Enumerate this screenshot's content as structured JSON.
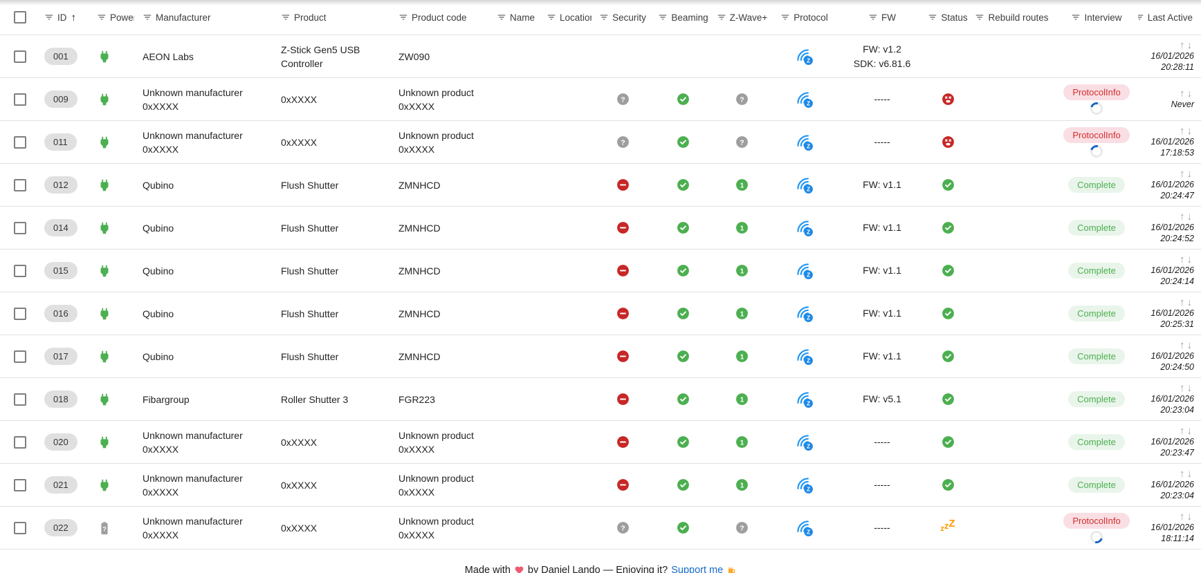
{
  "colors": {
    "green": "#4CAF50",
    "red": "#C62828",
    "blue": "#2196F3",
    "blue_badge": "#1E88E5",
    "gray": "#9E9E9E",
    "orange": "#FF9800",
    "link_blue": "#1669C9",
    "id_chip_bg": "#E0E0E0",
    "complete_chip_bg": "#E9F5EA",
    "complete_chip_text": "#4CAF50",
    "protocolinfo_chip_bg": "#F9DEE3",
    "protocolinfo_chip_text": "#D32F2F",
    "row_border": "#E0E0E0"
  },
  "header": {
    "select_all_checked": false,
    "columns": [
      {
        "key": "id",
        "label": "ID",
        "filter_icon": "filter-icon",
        "sort": "asc"
      },
      {
        "key": "power",
        "label": "Power",
        "filter_icon": "filter-icon",
        "sort": null
      },
      {
        "key": "manufacturer",
        "label": "Manufacturer",
        "filter_icon": "filter-icon",
        "sort": null
      },
      {
        "key": "product",
        "label": "Product",
        "filter_icon": "filter-icon",
        "sort": null
      },
      {
        "key": "code",
        "label": "Product code",
        "filter_icon": "filter-icon",
        "sort": null
      },
      {
        "key": "name",
        "label": "Name",
        "filter_icon": "filter-icon",
        "sort": null
      },
      {
        "key": "location",
        "label": "Location",
        "filter_icon": "filter-icon",
        "sort": null
      },
      {
        "key": "security",
        "label": "Security",
        "filter_icon": "filter-icon",
        "sort": null
      },
      {
        "key": "beaming",
        "label": "Beaming",
        "filter_icon": "filter-icon",
        "sort": null
      },
      {
        "key": "zwave",
        "label": "Z-Wave+",
        "filter_icon": "filter-icon",
        "sort": null
      },
      {
        "key": "protocol",
        "label": "Protocol",
        "filter_icon": "filter-icon",
        "sort": null
      },
      {
        "key": "fw",
        "label": "FW",
        "filter_icon": "filter-icon",
        "sort": null
      },
      {
        "key": "status",
        "label": "Status",
        "filter_icon": "filter-icon",
        "sort": null
      },
      {
        "key": "rebuild",
        "label": "Rebuild routes",
        "filter_icon": "filter-icon",
        "sort": null
      },
      {
        "key": "interview",
        "label": "Interview",
        "filter_icon": "filter-icon",
        "sort": null
      },
      {
        "key": "last",
        "label": "Last Active",
        "filter_icon": "filter-icon",
        "sort": null
      }
    ]
  },
  "rows": [
    {
      "id": "001",
      "checked": false,
      "power_icon": "power-plug-icon",
      "manufacturer": "AEON Labs",
      "product": "Z-Stick Gen5 USB Controller",
      "product_code": "ZW090",
      "name": "",
      "location": "",
      "security_icon": null,
      "beaming_icon": null,
      "zwaveplus_icon": null,
      "protocol_icon": "zwave-signal-icon",
      "fw_lines": [
        "FW: v1.2",
        "SDK: v6.81.6"
      ],
      "status_icon": null,
      "rebuild_routes": "",
      "interview": null,
      "last_active": {
        "date": "16/01/2026",
        "time": "20:28:11"
      }
    },
    {
      "id": "009",
      "checked": false,
      "power_icon": "power-plug-icon",
      "manufacturer": "Unknown manufacturer 0xXXXX",
      "product": "0xXXXX",
      "product_code": "Unknown product 0xXXXX",
      "name": "",
      "location": "",
      "security_icon": "help-circle-icon",
      "beaming_icon": "check-circle-icon",
      "zwaveplus_icon": "help-circle-icon",
      "protocol_icon": "zwave-signal-icon",
      "fw_lines": [
        "-----"
      ],
      "status_icon": "dead-face-icon",
      "rebuild_routes": "",
      "interview": {
        "label": "ProtocolInfo",
        "style": "error",
        "spinner": true,
        "spinner_angle_deg": -30
      },
      "last_active": {
        "never": "Never"
      }
    },
    {
      "id": "011",
      "checked": false,
      "power_icon": "power-plug-icon",
      "manufacturer": "Unknown manufacturer 0xXXXX",
      "product": "0xXXXX",
      "product_code": "Unknown product 0xXXXX",
      "name": "",
      "location": "",
      "security_icon": "help-circle-icon",
      "beaming_icon": "check-circle-icon",
      "zwaveplus_icon": "help-circle-icon",
      "protocol_icon": "zwave-signal-icon",
      "fw_lines": [
        "-----"
      ],
      "status_icon": "dead-face-icon",
      "rebuild_routes": "",
      "interview": {
        "label": "ProtocolInfo",
        "style": "error",
        "spinner": true,
        "spinner_angle_deg": -30
      },
      "last_active": {
        "date": "16/01/2026",
        "time": "17:18:53"
      }
    },
    {
      "id": "012",
      "checked": false,
      "power_icon": "power-plug-icon",
      "manufacturer": "Qubino",
      "product": "Flush Shutter",
      "product_code": "ZMNHCD",
      "name": "",
      "location": "",
      "security_icon": "minus-circle-icon",
      "beaming_icon": "check-circle-icon",
      "zwaveplus_icon": "one-circle-icon",
      "protocol_icon": "zwave-signal-icon",
      "fw_lines": [
        "FW: v1.1"
      ],
      "status_icon": "check-circle-icon",
      "rebuild_routes": "",
      "interview": {
        "label": "Complete",
        "style": "complete",
        "spinner": false
      },
      "last_active": {
        "date": "16/01/2026",
        "time": "20:24:47"
      }
    },
    {
      "id": "014",
      "checked": false,
      "power_icon": "power-plug-icon",
      "manufacturer": "Qubino",
      "product": "Flush Shutter",
      "product_code": "ZMNHCD",
      "name": "",
      "location": "",
      "security_icon": "minus-circle-icon",
      "beaming_icon": "check-circle-icon",
      "zwaveplus_icon": "one-circle-icon",
      "protocol_icon": "zwave-signal-icon",
      "fw_lines": [
        "FW: v1.1"
      ],
      "status_icon": "check-circle-icon",
      "rebuild_routes": "",
      "interview": {
        "label": "Complete",
        "style": "complete",
        "spinner": false
      },
      "last_active": {
        "date": "16/01/2026",
        "time": "20:24:52"
      }
    },
    {
      "id": "015",
      "checked": false,
      "power_icon": "power-plug-icon",
      "manufacturer": "Qubino",
      "product": "Flush Shutter",
      "product_code": "ZMNHCD",
      "name": "",
      "location": "",
      "security_icon": "minus-circle-icon",
      "beaming_icon": "check-circle-icon",
      "zwaveplus_icon": "one-circle-icon",
      "protocol_icon": "zwave-signal-icon",
      "fw_lines": [
        "FW: v1.1"
      ],
      "status_icon": "check-circle-icon",
      "rebuild_routes": "",
      "interview": {
        "label": "Complete",
        "style": "complete",
        "spinner": false
      },
      "last_active": {
        "date": "16/01/2026",
        "time": "20:24:14"
      }
    },
    {
      "id": "016",
      "checked": false,
      "power_icon": "power-plug-icon",
      "manufacturer": "Qubino",
      "product": "Flush Shutter",
      "product_code": "ZMNHCD",
      "name": "",
      "location": "",
      "security_icon": "minus-circle-icon",
      "beaming_icon": "check-circle-icon",
      "zwaveplus_icon": "one-circle-icon",
      "protocol_icon": "zwave-signal-icon",
      "fw_lines": [
        "FW: v1.1"
      ],
      "status_icon": "check-circle-icon",
      "rebuild_routes": "",
      "interview": {
        "label": "Complete",
        "style": "complete",
        "spinner": false
      },
      "last_active": {
        "date": "16/01/2026",
        "time": "20:25:31"
      }
    },
    {
      "id": "017",
      "checked": false,
      "power_icon": "power-plug-icon",
      "manufacturer": "Qubino",
      "product": "Flush Shutter",
      "product_code": "ZMNHCD",
      "name": "",
      "location": "",
      "security_icon": "minus-circle-icon",
      "beaming_icon": "check-circle-icon",
      "zwaveplus_icon": "one-circle-icon",
      "protocol_icon": "zwave-signal-icon",
      "fw_lines": [
        "FW: v1.1"
      ],
      "status_icon": "check-circle-icon",
      "rebuild_routes": "",
      "interview": {
        "label": "Complete",
        "style": "complete",
        "spinner": false
      },
      "last_active": {
        "date": "16/01/2026",
        "time": "20:24:50"
      }
    },
    {
      "id": "018",
      "checked": false,
      "power_icon": "power-plug-icon",
      "manufacturer": "Fibargroup",
      "product": "Roller Shutter 3",
      "product_code": "FGR223",
      "name": "",
      "location": "",
      "security_icon": "minus-circle-icon",
      "beaming_icon": "check-circle-icon",
      "zwaveplus_icon": "one-circle-icon",
      "protocol_icon": "zwave-signal-icon",
      "fw_lines": [
        "FW: v5.1"
      ],
      "status_icon": "check-circle-icon",
      "rebuild_routes": "",
      "interview": {
        "label": "Complete",
        "style": "complete",
        "spinner": false
      },
      "last_active": {
        "date": "16/01/2026",
        "time": "20:23:04"
      }
    },
    {
      "id": "020",
      "checked": false,
      "power_icon": "power-plug-icon",
      "manufacturer": "Unknown manufacturer 0xXXXX",
      "product": "0xXXXX",
      "product_code": "Unknown product 0xXXXX",
      "name": "",
      "location": "",
      "security_icon": "minus-circle-icon",
      "beaming_icon": "check-circle-icon",
      "zwaveplus_icon": "one-circle-icon",
      "protocol_icon": "zwave-signal-icon",
      "fw_lines": [
        "-----"
      ],
      "status_icon": "check-circle-icon",
      "rebuild_routes": "",
      "interview": {
        "label": "Complete",
        "style": "complete",
        "spinner": false
      },
      "last_active": {
        "date": "16/01/2026",
        "time": "20:23:47"
      }
    },
    {
      "id": "021",
      "checked": false,
      "power_icon": "power-plug-icon",
      "manufacturer": "Unknown manufacturer 0xXXXX",
      "product": "0xXXXX",
      "product_code": "Unknown product 0xXXXX",
      "name": "",
      "location": "",
      "security_icon": "minus-circle-icon",
      "beaming_icon": "check-circle-icon",
      "zwaveplus_icon": "one-circle-icon",
      "protocol_icon": "zwave-signal-icon",
      "fw_lines": [
        "-----"
      ],
      "status_icon": "check-circle-icon",
      "rebuild_routes": "",
      "interview": {
        "label": "Complete",
        "style": "complete",
        "spinner": false
      },
      "last_active": {
        "date": "16/01/2026",
        "time": "20:23:04"
      }
    },
    {
      "id": "022",
      "checked": false,
      "power_icon": "battery-unknown-icon",
      "manufacturer": "Unknown manufacturer 0xXXXX",
      "product": "0xXXXX",
      "product_code": "Unknown product 0xXXXX",
      "name": "",
      "location": "",
      "security_icon": "help-circle-icon",
      "beaming_icon": "check-circle-icon",
      "zwaveplus_icon": "help-circle-icon",
      "protocol_icon": "zwave-signal-icon",
      "fw_lines": [
        "-----"
      ],
      "status_icon": "sleeping-zzz-icon",
      "rebuild_routes": "",
      "interview": {
        "label": "ProtocolInfo",
        "style": "error",
        "spinner": true,
        "spinner_angle_deg": 150
      },
      "last_active": {
        "date": "16/01/2026",
        "time": "18:11:14"
      }
    }
  ],
  "footer": {
    "prefix": "Made with",
    "heart_icon": "heart-icon",
    "middle": "by Daniel Lando — Enjoying it?",
    "support_link_label": "Support me",
    "beer_icon": "beer-icon"
  }
}
